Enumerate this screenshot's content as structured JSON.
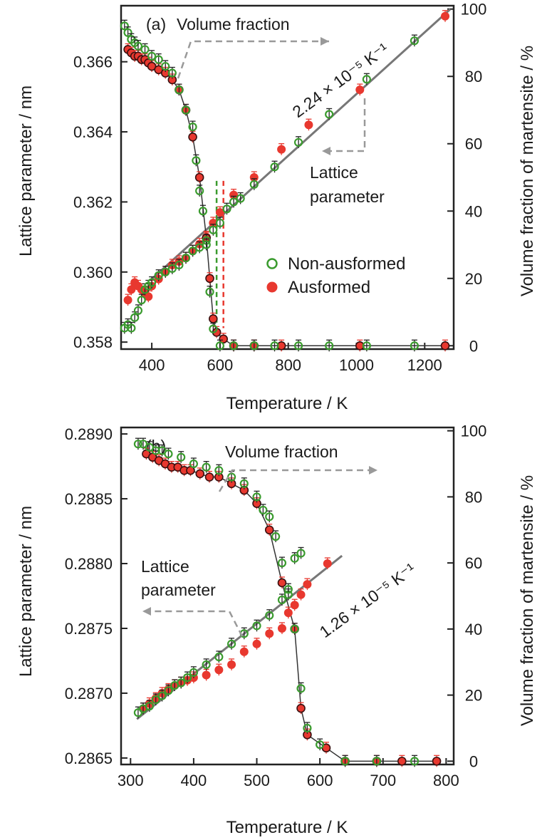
{
  "colors": {
    "non_ausformed": "#3a9b2e",
    "ausformed": "#e8382f",
    "fit_line": "#777777",
    "arrow": "#999999",
    "axis": "#222222"
  },
  "chart_data": [
    {
      "type": "scatter",
      "panel_label": "(a)",
      "xlabel": "Temperature / K",
      "ylabel_left": "Lattice parameter / nm",
      "ylabel_right": "Volume fraction of martensite / %",
      "xlim": [
        310,
        1285
      ],
      "ylim_left": [
        0.3578,
        0.3676
      ],
      "ylim_right": [
        -1,
        101
      ],
      "x_ticks": [
        400,
        600,
        800,
        1000,
        1200
      ],
      "y_left_ticks": [
        0.358,
        0.36,
        0.362,
        0.364,
        0.366
      ],
      "y_left_tick_labels": [
        "0.358",
        "0.360",
        "0.362",
        "0.364",
        "0.366"
      ],
      "y_right_ticks": [
        0,
        20,
        40,
        60,
        80,
        100
      ],
      "annotations": {
        "volume_fraction": "Volume fraction",
        "lattice_parameter_1": "Lattice",
        "lattice_parameter_2": "parameter",
        "slope": "2.24 × 10⁻⁵ K⁻¹"
      },
      "legend": {
        "position": "center-right",
        "entries": [
          "Non-ausformed",
          "Ausformed"
        ]
      },
      "fit_line": {
        "x": [
          400,
          1275
        ],
        "y": [
          0.3598,
          0.3675
        ]
      },
      "vertical_markers": [
        {
          "series": "Non-ausformed",
          "x": 590
        },
        {
          "series": "Ausformed",
          "x": 610
        }
      ],
      "series": [
        {
          "name": "Non-ausformed",
          "axis": "left",
          "x": [
            320,
            330,
            340,
            350,
            360,
            370,
            380,
            390,
            400,
            420,
            440,
            460,
            480,
            500,
            520,
            540,
            560,
            580,
            600,
            620,
            640,
            660,
            700,
            760,
            830,
            920,
            1030,
            1170
          ],
          "y": [
            0.3584,
            0.3585,
            0.3584,
            0.3587,
            0.3589,
            0.3592,
            0.3595,
            0.3596,
            0.3597,
            0.3599,
            0.36,
            0.3601,
            0.3602,
            0.3604,
            0.3606,
            0.3607,
            0.3609,
            0.3612,
            0.3614,
            0.3618,
            0.362,
            0.3621,
            0.3625,
            0.363,
            0.3637,
            0.3645,
            0.3655,
            0.3666
          ]
        },
        {
          "name": "Ausformed",
          "axis": "left",
          "x": [
            330,
            340,
            350,
            360,
            370,
            380,
            390,
            400,
            420,
            440,
            460,
            480,
            500,
            520,
            540,
            560,
            580,
            600,
            640,
            700,
            780,
            860,
            1010,
            1260
          ],
          "y": [
            0.3592,
            0.3595,
            0.3597,
            0.3596,
            0.3595,
            0.3594,
            0.3593,
            0.3596,
            0.3598,
            0.36,
            0.3602,
            0.3603,
            0.3604,
            0.3606,
            0.3608,
            0.361,
            0.3614,
            0.3617,
            0.3622,
            0.3627,
            0.3635,
            0.3642,
            0.3652,
            0.3673
          ]
        },
        {
          "name": "Non-ausformed volume fraction",
          "axis": "right",
          "x": [
            320,
            330,
            340,
            350,
            360,
            380,
            400,
            420,
            440,
            460,
            480,
            500,
            520,
            530,
            540,
            550,
            560,
            570,
            580,
            600,
            640,
            700,
            760,
            830,
            920,
            1030,
            1170
          ],
          "y": [
            95,
            93,
            91,
            90,
            89,
            88,
            86,
            85,
            83,
            81,
            76,
            70,
            65,
            55,
            46,
            40,
            30,
            16,
            5,
            0,
            0,
            0,
            0,
            0,
            0,
            0,
            0
          ]
        },
        {
          "name": "Ausformed volume fraction",
          "axis": "right",
          "x": [
            330,
            340,
            350,
            360,
            370,
            380,
            390,
            400,
            420,
            440,
            460,
            480,
            500,
            520,
            540,
            560,
            570,
            580,
            590,
            610,
            640,
            700,
            780,
            1010,
            1260
          ],
          "y": [
            88,
            87,
            86,
            86,
            85,
            85,
            84,
            83,
            82,
            81,
            79,
            76,
            70,
            62,
            50,
            32,
            20,
            8,
            4,
            2,
            0,
            0,
            0,
            0,
            0
          ]
        }
      ]
    },
    {
      "type": "scatter",
      "panel_label": "(b)",
      "xlabel": "Temperature / K",
      "ylabel_left": "Lattice parameter / nm",
      "ylabel_right": "Volume fraction of martensite / %",
      "xlim": [
        285,
        812
      ],
      "ylim_left": [
        0.28645,
        0.28905
      ],
      "ylim_right": [
        -1,
        101
      ],
      "x_ticks": [
        300,
        400,
        500,
        600,
        700,
        800
      ],
      "y_left_ticks": [
        0.2865,
        0.287,
        0.2875,
        0.288,
        0.2885,
        0.289
      ],
      "y_left_tick_labels": [
        "0.2865",
        "0.2870",
        "0.2875",
        "0.2880",
        "0.2885",
        "0.2890"
      ],
      "y_right_ticks": [
        0,
        20,
        40,
        60,
        80,
        100
      ],
      "annotations": {
        "volume_fraction": "Volume fraction",
        "lattice_parameter_1": "Lattice",
        "lattice_parameter_2": "parameter",
        "slope": "1.26 × 10⁻⁵ K⁻¹"
      },
      "fit_line": {
        "x": [
          310,
          635
        ],
        "y": [
          0.2868,
          0.28806
        ]
      },
      "series": [
        {
          "name": "Non-ausformed",
          "axis": "left",
          "x": [
            312,
            320,
            330,
            340,
            350,
            360,
            370,
            380,
            390,
            400,
            420,
            440,
            460,
            480,
            500,
            520,
            540,
            550,
            560,
            570
          ],
          "y": [
            0.28685,
            0.28688,
            0.2869,
            0.28695,
            0.28698,
            0.28702,
            0.28706,
            0.28708,
            0.28712,
            0.28716,
            0.28722,
            0.28728,
            0.28738,
            0.28746,
            0.28752,
            0.2876,
            0.28772,
            0.28776,
            0.28804,
            0.28808
          ]
        },
        {
          "name": "Ausformed",
          "axis": "left",
          "x": [
            320,
            330,
            340,
            350,
            360,
            370,
            380,
            390,
            400,
            420,
            440,
            460,
            480,
            500,
            520,
            540,
            550,
            560,
            570,
            580,
            612
          ],
          "y": [
            0.28688,
            0.28692,
            0.28696,
            0.287,
            0.28703,
            0.28706,
            0.28708,
            0.2871,
            0.28712,
            0.28714,
            0.28718,
            0.28722,
            0.28732,
            0.28738,
            0.28746,
            0.2875,
            0.28762,
            0.28768,
            0.28776,
            0.28784,
            0.288
          ]
        },
        {
          "name": "Non-ausformed volume fraction",
          "axis": "right",
          "x": [
            312,
            320,
            330,
            340,
            350,
            360,
            380,
            400,
            420,
            440,
            460,
            480,
            500,
            510,
            520,
            530,
            540,
            550,
            560,
            570,
            580,
            600,
            640,
            690,
            750
          ],
          "y": [
            96,
            96,
            95,
            94,
            94,
            93,
            92,
            90,
            89,
            88,
            86,
            84,
            80,
            76,
            74,
            68,
            60,
            52,
            40,
            22,
            10,
            5,
            0,
            0,
            0
          ]
        },
        {
          "name": "Ausformed volume fraction",
          "axis": "right",
          "x": [
            325,
            335,
            345,
            355,
            365,
            375,
            385,
            395,
            410,
            425,
            440,
            460,
            480,
            500,
            520,
            540,
            560,
            570,
            580,
            610,
            640,
            690,
            730,
            785
          ],
          "y": [
            93,
            92,
            91,
            90,
            89,
            89,
            88,
            88,
            87,
            86,
            86,
            84,
            82,
            78,
            70,
            54,
            40,
            16,
            8,
            4,
            0,
            0,
            0,
            0
          ]
        }
      ]
    }
  ]
}
